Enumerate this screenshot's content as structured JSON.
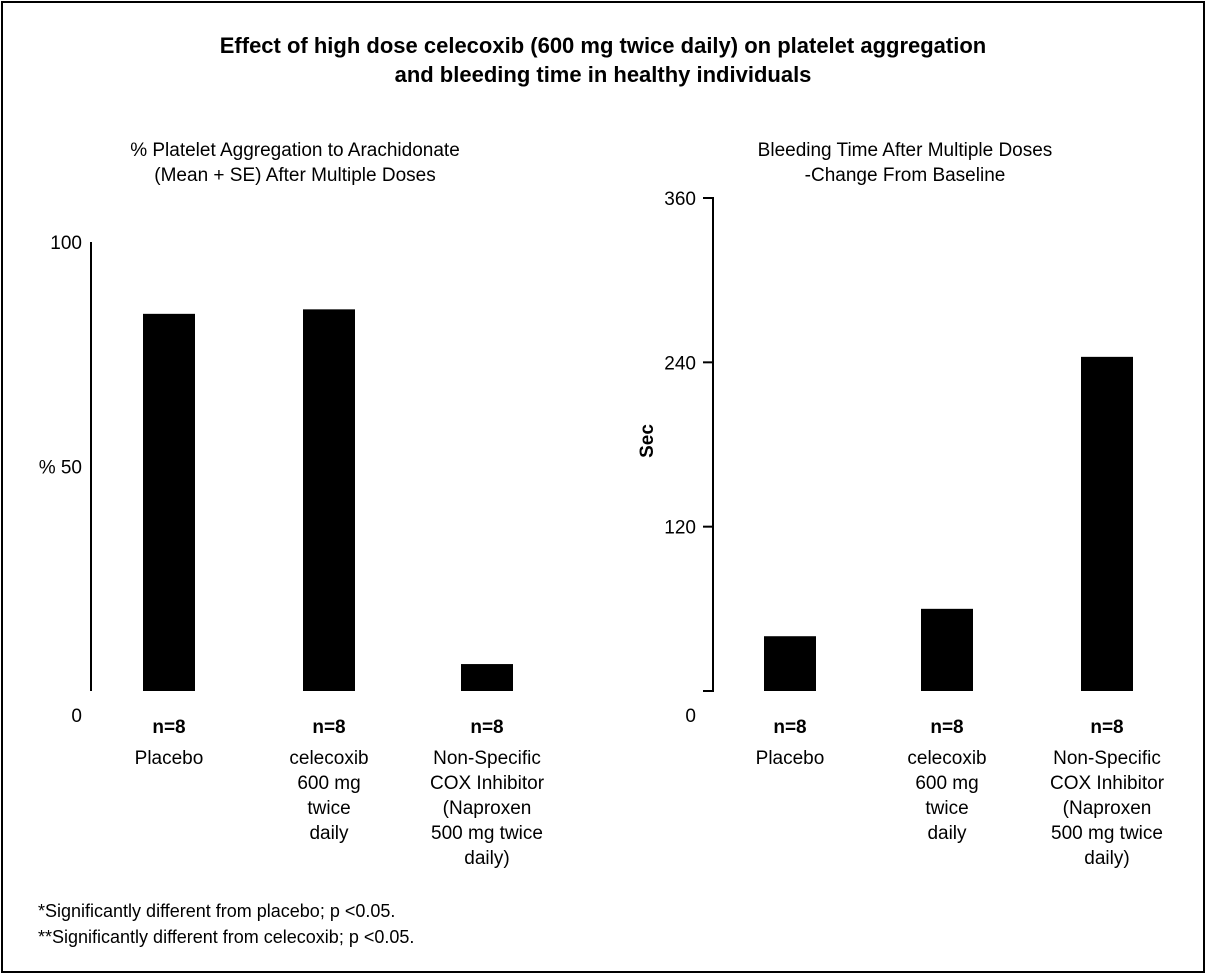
{
  "title": {
    "line1": "Effect of high dose celecoxib (600 mg twice daily) on platelet aggregation",
    "line2": "and bleeding time in healthy individuals"
  },
  "footnotes": [
    "*Significantly different from placebo; p <0.05.",
    "**Significantly different from celecoxib; p <0.05."
  ],
  "chart_data": [
    {
      "type": "bar",
      "title": [
        "% Platelet Aggregation to Arachidonate",
        "(Mean + SE) After Multiple Doses"
      ],
      "ylabel": "",
      "ylim": [
        0,
        100
      ],
      "yticks": [
        {
          "value": 0,
          "label": "0"
        },
        {
          "value": 50,
          "label": "% 50"
        },
        {
          "value": 100,
          "label": "100"
        }
      ],
      "categories": [
        {
          "n": "n=8",
          "label_lines": [
            "Placebo"
          ]
        },
        {
          "n": "n=8",
          "label_lines": [
            "celecoxib",
            "600 mg",
            "twice",
            "daily"
          ]
        },
        {
          "n": "n=8",
          "label_lines": [
            "Non-Specific",
            "COX Inhibitor",
            "(Naproxen",
            "500 mg twice",
            "daily)"
          ]
        }
      ],
      "values": [
        84,
        85,
        6
      ],
      "bar_color": "#000000"
    },
    {
      "type": "bar",
      "title": [
        "Bleeding Time After Multiple Doses",
        "-Change From Baseline"
      ],
      "ylabel": "Sec",
      "ylim": [
        0,
        360
      ],
      "yticks": [
        {
          "value": 0,
          "label": "0"
        },
        {
          "value": 120,
          "label": "120"
        },
        {
          "value": 240,
          "label": "240"
        },
        {
          "value": 360,
          "label": "360"
        }
      ],
      "categories": [
        {
          "n": "n=8",
          "label_lines": [
            "Placebo"
          ]
        },
        {
          "n": "n=8",
          "label_lines": [
            "celecoxib",
            "600 mg",
            "twice",
            "daily"
          ]
        },
        {
          "n": "n=8",
          "label_lines": [
            "Non-Specific",
            "COX Inhibitor",
            "(Naproxen",
            "500 mg twice",
            "daily)"
          ]
        }
      ],
      "values": [
        40,
        60,
        244
      ],
      "bar_color": "#000000"
    }
  ]
}
